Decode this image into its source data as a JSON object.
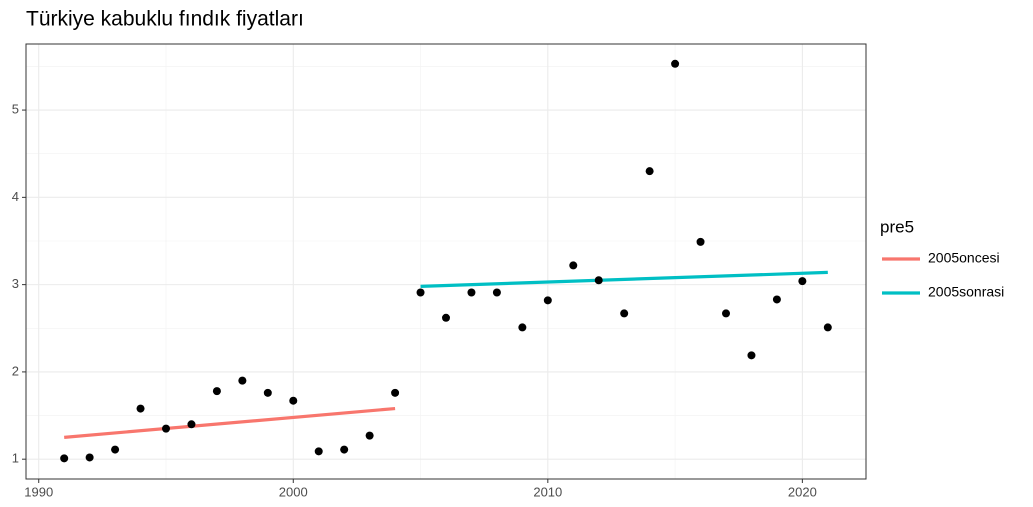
{
  "chart_data": {
    "type": "scatter",
    "title": "Türkiye kabuklu fındık fiyatları",
    "x": [
      1991,
      1992,
      1993,
      1994,
      1995,
      1996,
      1997,
      1998,
      1999,
      2000,
      2001,
      2002,
      2003,
      2004,
      2005,
      2006,
      2007,
      2008,
      2009,
      2010,
      2011,
      2012,
      2013,
      2014,
      2015,
      2016,
      2017,
      2018,
      2019,
      2020,
      2021
    ],
    "values": [
      1.01,
      1.02,
      1.11,
      1.58,
      1.35,
      1.4,
      1.78,
      1.9,
      1.76,
      1.67,
      1.09,
      1.11,
      1.27,
      1.76,
      2.91,
      2.62,
      2.91,
      2.91,
      2.51,
      2.82,
      3.22,
      3.05,
      2.67,
      4.3,
      5.53,
      3.49,
      2.67,
      2.19,
      2.83,
      3.04,
      2.51
    ],
    "color": "#000000",
    "legend_title": "pre5",
    "series": [
      {
        "name": "2005oncesi",
        "color": "#f8766d",
        "x": [
          1991,
          2004
        ],
        "values": [
          1.25,
          1.58
        ]
      },
      {
        "name": "2005sonrasi",
        "color": "#00bfc4",
        "x": [
          2005,
          2021
        ],
        "values": [
          2.98,
          3.14
        ]
      }
    ],
    "xlim": [
      1989.5,
      2022.5
    ],
    "ylim": [
      0.773,
      5.757
    ],
    "xticks": [
      1990,
      2000,
      2010,
      2020
    ],
    "yticks": [
      1,
      2,
      3,
      4,
      5
    ],
    "minor_xticks": [
      1995,
      2005,
      2015
    ],
    "minor_yticks": [
      1.5,
      2.5,
      3.5,
      4.5,
      5.5
    ],
    "grid": true,
    "legend": "right"
  }
}
